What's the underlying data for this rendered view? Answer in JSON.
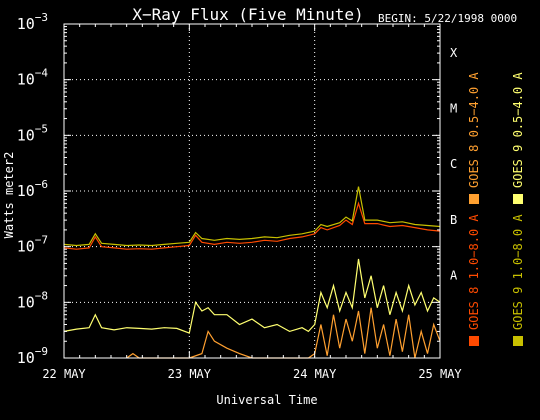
{
  "chart_data": {
    "type": "line",
    "title": "X−Ray Flux (Five Minute)",
    "begin_label": "BEGIN: 5/22/1998 0000",
    "ylabel": "Watts meter2",
    "xlabel": "Universal Time",
    "y_scale": "log",
    "ylim": [
      1e-09,
      0.001
    ],
    "xlim": [
      0,
      3
    ],
    "y_ticks": [
      {
        "base": "10",
        "exp": "−9",
        "value": 1e-09
      },
      {
        "base": "10",
        "exp": "−8",
        "value": 1e-08
      },
      {
        "base": "10",
        "exp": "−7",
        "value": 1e-07
      },
      {
        "base": "10",
        "exp": "−6",
        "value": 1e-06
      },
      {
        "base": "10",
        "exp": "−5",
        "value": 1e-05
      },
      {
        "base": "10",
        "exp": "−4",
        "value": 0.0001
      },
      {
        "base": "10",
        "exp": "−3",
        "value": 0.001
      }
    ],
    "x_ticks": [
      {
        "label": "22 MAY",
        "value": 0
      },
      {
        "label": "23 MAY",
        "value": 1
      },
      {
        "label": "24 MAY",
        "value": 2
      },
      {
        "label": "25 MAY",
        "value": 3
      }
    ],
    "flare_classes": [
      {
        "label": "A",
        "value": 1e-08
      },
      {
        "label": "B",
        "value": 1e-07
      },
      {
        "label": "C",
        "value": 1e-06
      },
      {
        "label": "M",
        "value": 1e-05
      },
      {
        "label": "X",
        "value": 0.0001
      }
    ],
    "legend": [
      {
        "label": "GOES 8 1.0−8.0 A",
        "color": "#ff4a00"
      },
      {
        "label": "GOES 8 0.5−4.0 A",
        "color": "#ffa030"
      },
      {
        "label": "GOES 9 1.0−8.0 A",
        "color": "#c8c000"
      },
      {
        "label": "GOES 9 0.5−4.0 A",
        "color": "#ffff70"
      }
    ],
    "grid": true,
    "series": [
      {
        "color": "#ff4a00",
        "x": [
          0,
          0.1,
          0.2,
          0.25,
          0.3,
          0.4,
          0.5,
          0.6,
          0.7,
          0.8,
          0.9,
          1.0,
          1.05,
          1.1,
          1.2,
          1.3,
          1.4,
          1.5,
          1.6,
          1.7,
          1.8,
          1.9,
          2.0,
          2.05,
          2.1,
          2.2,
          2.25,
          2.3,
          2.35,
          2.4,
          2.5,
          2.6,
          2.7,
          2.8,
          2.9,
          3.0
        ],
        "y": [
          9.5e-08,
          9e-08,
          9.5e-08,
          1.5e-07,
          1e-07,
          9.5e-08,
          9e-08,
          9.2e-08,
          9e-08,
          9.5e-08,
          1e-07,
          1.05e-07,
          1.6e-07,
          1.2e-07,
          1.1e-07,
          1.2e-07,
          1.15e-07,
          1.2e-07,
          1.3e-07,
          1.25e-07,
          1.4e-07,
          1.5e-07,
          1.7e-07,
          2.2e-07,
          2e-07,
          2.4e-07,
          3e-07,
          2.5e-07,
          6e-07,
          2.6e-07,
          2.6e-07,
          2.3e-07,
          2.4e-07,
          2.2e-07,
          2e-07,
          1.9e-07
        ]
      },
      {
        "color": "#ffa030",
        "x": [
          0.5,
          0.55,
          0.6,
          0.7,
          0.8,
          0.9,
          0.95,
          1.0,
          1.1,
          1.15,
          1.2,
          1.3,
          1.4,
          1.5,
          1.6,
          1.7,
          1.8,
          1.9,
          1.95,
          2.0,
          2.05,
          2.1,
          2.15,
          2.2,
          2.25,
          2.3,
          2.35,
          2.4,
          2.45,
          2.5,
          2.55,
          2.6,
          2.65,
          2.7,
          2.75,
          2.8,
          2.85,
          2.9,
          2.95,
          3.0
        ],
        "y": [
          1e-09,
          1.2e-09,
          1e-09,
          1e-09,
          1e-09,
          1e-09,
          1e-09,
          1e-09,
          1.2e-09,
          3e-09,
          2e-09,
          1.5e-09,
          1.2e-09,
          1e-09,
          1e-09,
          1e-09,
          1e-09,
          1e-09,
          1e-09,
          1.2e-09,
          4e-09,
          1.1e-09,
          6e-09,
          1.5e-09,
          5e-09,
          2e-09,
          7e-09,
          1.2e-09,
          8e-09,
          1.5e-09,
          4e-09,
          1.1e-09,
          5e-09,
          1.3e-09,
          6e-09,
          1e-09,
          3e-09,
          1.2e-09,
          4e-09,
          2e-09
        ]
      },
      {
        "color": "#c8c000",
        "x": [
          0,
          0.1,
          0.2,
          0.25,
          0.3,
          0.4,
          0.5,
          0.6,
          0.7,
          0.8,
          0.9,
          1.0,
          1.05,
          1.1,
          1.2,
          1.3,
          1.4,
          1.5,
          1.6,
          1.7,
          1.8,
          1.9,
          2.0,
          2.05,
          2.1,
          2.2,
          2.25,
          2.3,
          2.35,
          2.4,
          2.5,
          2.6,
          2.7,
          2.8,
          2.9,
          3.0
        ],
        "y": [
          1.1e-07,
          1.05e-07,
          1.1e-07,
          1.7e-07,
          1.15e-07,
          1.1e-07,
          1.05e-07,
          1.07e-07,
          1.05e-07,
          1.1e-07,
          1.15e-07,
          1.2e-07,
          1.8e-07,
          1.4e-07,
          1.3e-07,
          1.4e-07,
          1.35e-07,
          1.4e-07,
          1.5e-07,
          1.45e-07,
          1.6e-07,
          1.7e-07,
          1.9e-07,
          2.5e-07,
          2.3e-07,
          2.7e-07,
          3.4e-07,
          2.9e-07,
          1.2e-06,
          3e-07,
          3e-07,
          2.7e-07,
          2.8e-07,
          2.5e-07,
          2.4e-07,
          2.3e-07
        ]
      },
      {
        "color": "#ffff70",
        "x": [
          0,
          0.1,
          0.2,
          0.25,
          0.3,
          0.4,
          0.5,
          0.6,
          0.7,
          0.8,
          0.9,
          1.0,
          1.05,
          1.1,
          1.15,
          1.2,
          1.3,
          1.4,
          1.5,
          1.6,
          1.7,
          1.8,
          1.9,
          1.95,
          2.0,
          2.05,
          2.1,
          2.15,
          2.2,
          2.25,
          2.3,
          2.35,
          2.4,
          2.45,
          2.5,
          2.55,
          2.6,
          2.65,
          2.7,
          2.75,
          2.8,
          2.85,
          2.9,
          2.95,
          3.0
        ],
        "y": [
          3e-09,
          3.3e-09,
          3.5e-09,
          6e-09,
          3.5e-09,
          3.2e-09,
          3.5e-09,
          3.4e-09,
          3.3e-09,
          3.5e-09,
          3.4e-09,
          2.8e-09,
          1e-08,
          7e-09,
          8e-09,
          6e-09,
          6e-09,
          4e-09,
          5e-09,
          3.5e-09,
          4e-09,
          3e-09,
          3.5e-09,
          3e-09,
          4e-09,
          1.5e-08,
          8e-09,
          2e-08,
          7e-09,
          1.5e-08,
          8e-09,
          6e-08,
          1.2e-08,
          3e-08,
          8e-09,
          2e-08,
          6e-09,
          1.5e-08,
          7e-09,
          2e-08,
          9e-09,
          1.5e-08,
          7e-09,
          1.2e-08,
          1e-08
        ]
      }
    ]
  }
}
